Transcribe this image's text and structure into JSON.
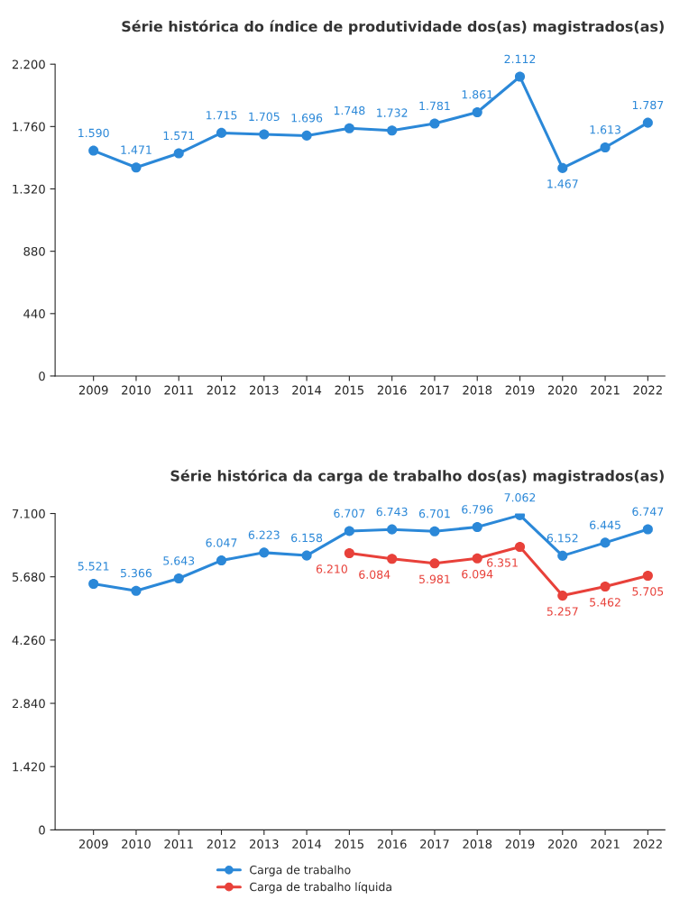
{
  "chart_data": [
    {
      "type": "line",
      "title": "Série histórica do índice de produtividade dos(as) magistrados(as)",
      "categories": [
        "2009",
        "2010",
        "2011",
        "2012",
        "2013",
        "2014",
        "2015",
        "2016",
        "2017",
        "2018",
        "2019",
        "2020",
        "2021",
        "2022"
      ],
      "series": [
        {
          "color": "#2b88d8",
          "values": [
            1590,
            1471,
            1571,
            1715,
            1705,
            1696,
            1748,
            1732,
            1781,
            1861,
            2112,
            1467,
            1613,
            1787
          ],
          "value_labels": [
            "1.590",
            "1.471",
            "1.571",
            "1.715",
            "1.705",
            "1.696",
            "1.748",
            "1.732",
            "1.781",
            "1.861",
            "2.112",
            "1.467",
            "1.613",
            "1.787"
          ]
        }
      ],
      "ylim": [
        0,
        2200
      ],
      "yticks": [
        0,
        {
          "value": 440,
          "label": "440"
        },
        {
          "value": 880,
          "label": "880"
        },
        {
          "value": 1320,
          "label": "1.320"
        },
        {
          "value": 1760,
          "label": "1.760"
        },
        {
          "value": 2200,
          "label": "2.200"
        }
      ],
      "grid": false,
      "marker": "circle",
      "legend": false
    },
    {
      "type": "line",
      "title": "Série histórica da carga de trabalho dos(as) magistrados(as)",
      "categories": [
        "2009",
        "2010",
        "2011",
        "2012",
        "2013",
        "2014",
        "2015",
        "2016",
        "2017",
        "2018",
        "2019",
        "2020",
        "2021",
        "2022"
      ],
      "series": [
        {
          "name": "Carga de trabalho",
          "color": "#2b88d8",
          "values": [
            5521,
            5366,
            5643,
            6047,
            6223,
            6158,
            6707,
            6743,
            6701,
            6796,
            7062,
            6152,
            6445,
            6747
          ],
          "value_labels": [
            "5.521",
            "5.366",
            "5.643",
            "6.047",
            "6.223",
            "6.158",
            "6.707",
            "6.743",
            "6.701",
            "6.796",
            "7.062",
            "6.152",
            "6.445",
            "6.747"
          ]
        },
        {
          "name": "Carga de trabalho líquida",
          "color": "#e8413a",
          "values": [
            null,
            null,
            null,
            null,
            null,
            null,
            6210,
            6084,
            5981,
            6094,
            6351,
            5257,
            5462,
            5705
          ],
          "value_labels": [
            null,
            null,
            null,
            null,
            null,
            null,
            "6.210",
            "6.084",
            "5.981",
            "6.094",
            "6.351",
            "5.257",
            "5.462",
            "5.705"
          ]
        }
      ],
      "ylim": [
        0,
        7100
      ],
      "yticks": [
        0,
        {
          "value": 1420,
          "label": "1.420"
        },
        {
          "value": 2840,
          "label": "2.840"
        },
        {
          "value": 4260,
          "label": "4.260"
        },
        {
          "value": 5680,
          "label": "5.680"
        },
        {
          "value": 7100,
          "label": "7.100"
        }
      ],
      "grid": false,
      "marker": "circle",
      "legend": "bottom"
    }
  ]
}
